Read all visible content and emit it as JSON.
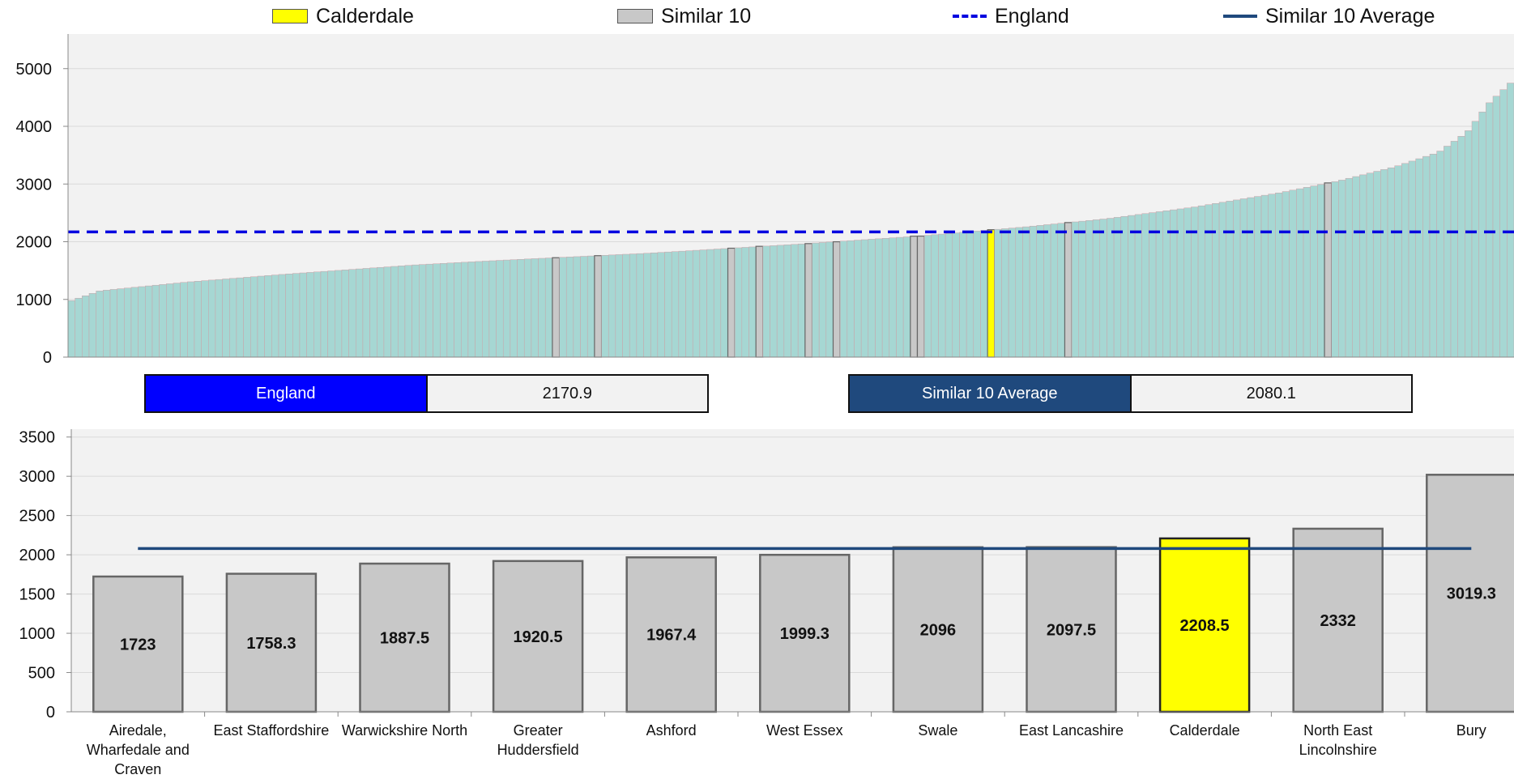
{
  "legend": [
    {
      "label": "Calderdale",
      "type": "box",
      "color": "#ffff00"
    },
    {
      "label": "Similar 10",
      "type": "box",
      "color": "#c8c8c8"
    },
    {
      "label": "England",
      "type": "dashed-line",
      "color": "#0000e0"
    },
    {
      "label": "Similar 10 Average",
      "type": "line",
      "color": "#1f497d"
    }
  ],
  "summary": {
    "england_label": "England",
    "england_value": "2170.9",
    "similar_label": "Similar 10 Average",
    "similar_value": "2080.1"
  },
  "colors": {
    "calderdale": "#ffff00",
    "similar": "#c8c8c8",
    "other": "#a6d7d3",
    "england": "#0000e0",
    "similar_avg": "#1f497d",
    "england_box": "#0000ff",
    "similar_box": "#1f497d",
    "plot_bg": "#f2f2f2"
  },
  "chart_data": [
    {
      "type": "bar",
      "description_scope": "all areas sorted ascending",
      "ylim": [
        0,
        5600
      ],
      "yticks": [
        0,
        1000,
        2000,
        3000,
        4000,
        5000
      ],
      "reference_line": {
        "name": "England",
        "value": 2170.9,
        "style": "dashed"
      },
      "n_bars": 206,
      "min_value": 980,
      "max_value": 4750,
      "highlight": [
        {
          "name": "Airedale, Wharfedale and Craven",
          "value": 1723,
          "kind": "similar"
        },
        {
          "name": "East Staffordshire",
          "value": 1758.3,
          "kind": "similar"
        },
        {
          "name": "Warwickshire North",
          "value": 1887.5,
          "kind": "similar"
        },
        {
          "name": "Greater Huddersfield",
          "value": 1920.5,
          "kind": "similar"
        },
        {
          "name": "Ashford",
          "value": 1967.4,
          "kind": "similar"
        },
        {
          "name": "West Essex",
          "value": 1999.3,
          "kind": "similar"
        },
        {
          "name": "Swale",
          "value": 2096,
          "kind": "similar"
        },
        {
          "name": "East Lancashire",
          "value": 2097.5,
          "kind": "similar"
        },
        {
          "name": "Calderdale",
          "value": 2208.5,
          "kind": "calderdale"
        },
        {
          "name": "North East Lincolnshire",
          "value": 2332,
          "kind": "similar"
        },
        {
          "name": "Bury",
          "value": 3019.3,
          "kind": "similar"
        }
      ]
    },
    {
      "type": "bar",
      "categories": [
        "Airedale, Wharfedale and Craven",
        "East Staffordshire",
        "Warwickshire North",
        "Greater Huddersfield",
        "Ashford",
        "West Essex",
        "Swale",
        "East Lancashire",
        "Calderdale",
        "North East Lincolnshire",
        "Bury"
      ],
      "category_lines": [
        [
          "Airedale,",
          "Wharfedale and",
          "Craven"
        ],
        [
          "East Staffordshire"
        ],
        [
          "Warwickshire North"
        ],
        [
          "Greater",
          "Huddersfield"
        ],
        [
          "Ashford"
        ],
        [
          "West Essex"
        ],
        [
          "Swale"
        ],
        [
          "East Lancashire"
        ],
        [
          "Calderdale"
        ],
        [
          "North East",
          "Lincolnshire"
        ],
        [
          "Bury"
        ]
      ],
      "values": [
        1723,
        1758.3,
        1887.5,
        1920.5,
        1967.4,
        1999.3,
        2096,
        2097.5,
        2208.5,
        2332,
        3019.3
      ],
      "value_labels": [
        "1723",
        "1758.3",
        "1887.5",
        "1920.5",
        "1967.4",
        "1999.3",
        "2096",
        "2097.5",
        "2208.5",
        "2332",
        "3019.3"
      ],
      "ylim": [
        0,
        3600
      ],
      "yticks": [
        0,
        500,
        1000,
        1500,
        2000,
        2500,
        3000,
        3500
      ],
      "reference_line": {
        "name": "Similar 10 Average",
        "value": 2080.1,
        "style": "solid"
      },
      "highlight_category": "Calderdale"
    }
  ]
}
